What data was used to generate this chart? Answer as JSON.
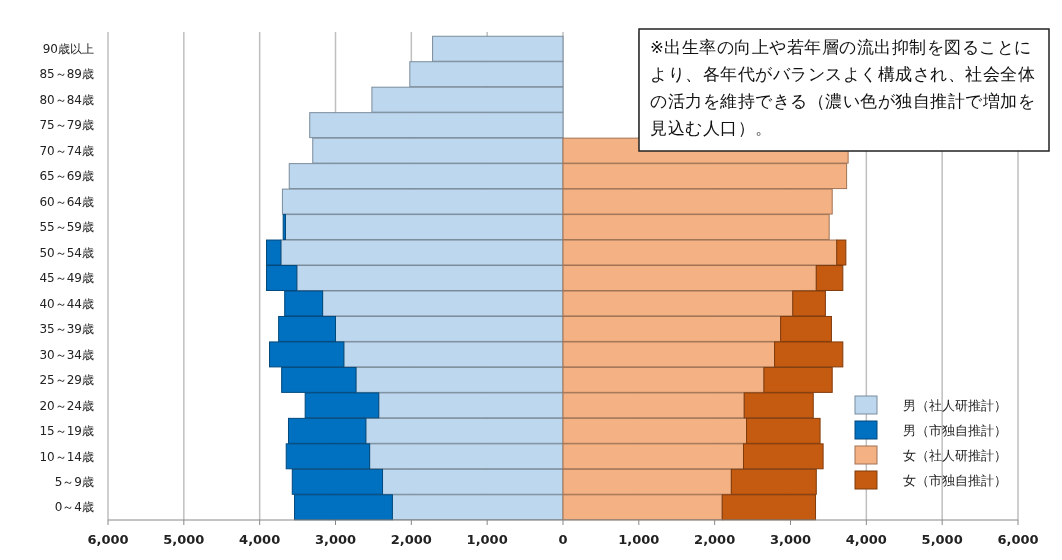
{
  "chart_data": {
    "type": "bar",
    "orientation": "horizontal",
    "stacked": true,
    "categories": [
      "90歳以上",
      "85～89歳",
      "80～84歳",
      "75～79歳",
      "70～74歳",
      "65～69歳",
      "60～64歳",
      "55～59歳",
      "50～54歳",
      "45～49歳",
      "40～44歳",
      "35～39歳",
      "30～34歳",
      "25～29歳",
      "20～24歳",
      "15～19歳",
      "10～14歳",
      "5～9歳",
      "0～4歳"
    ],
    "series": [
      {
        "name": "男（社人研推計）",
        "color": "#bdd7ee",
        "values": [
          -1720,
          -2020,
          -2520,
          -3340,
          -3300,
          -3610,
          -3700,
          -3660,
          -3720,
          -3510,
          -3170,
          -3000,
          -2890,
          -2730,
          -2430,
          -2600,
          -2550,
          -2380,
          -2250
        ]
      },
      {
        "name": "男（市独自推計）",
        "color": "#0070c0",
        "values": [
          null,
          null,
          null,
          null,
          null,
          null,
          null,
          -30,
          -190,
          -400,
          -500,
          -750,
          -980,
          -980,
          -970,
          -1020,
          -1100,
          -1190,
          -1290
        ]
      },
      {
        "name": "女（社人研推計）",
        "color": "#f4b183",
        "values": [
          null,
          null,
          null,
          null,
          3760,
          3740,
          3550,
          3510,
          3610,
          3340,
          3030,
          2870,
          2790,
          2650,
          2390,
          2420,
          2380,
          2220,
          2100
        ]
      },
      {
        "name": "女（市独自推計）",
        "color": "#c55a11",
        "values": [
          null,
          null,
          null,
          null,
          null,
          null,
          null,
          null,
          120,
          350,
          430,
          670,
          900,
          900,
          910,
          970,
          1050,
          1120,
          1230
        ]
      }
    ],
    "xlim": [
      -6000,
      6000
    ],
    "xticks": [
      {
        "value": -6000,
        "label": "6,000"
      },
      {
        "value": -5000,
        "label": "5,000"
      },
      {
        "value": -4000,
        "label": "4,000"
      },
      {
        "value": -3000,
        "label": "3,000"
      },
      {
        "value": -2000,
        "label": "2,000"
      },
      {
        "value": -1000,
        "label": "1,000"
      },
      {
        "value": 0,
        "label": "0"
      },
      {
        "value": 1000,
        "label": "1,000"
      },
      {
        "value": 2000,
        "label": "2,000"
      },
      {
        "value": 3000,
        "label": "3,000"
      },
      {
        "value": 4000,
        "label": "4,000"
      },
      {
        "value": 5000,
        "label": "5,000"
      },
      {
        "value": 6000,
        "label": "6,000"
      }
    ],
    "grid": "x",
    "legend": "bottom right",
    "annotations": [
      "※出生率の向上や若年層の流出抑制を図ることにより、各年代がバランスよく構成され、社会全体の活力を維持できる（濃い色が独自推計で増加を見込む人口）。"
    ]
  }
}
